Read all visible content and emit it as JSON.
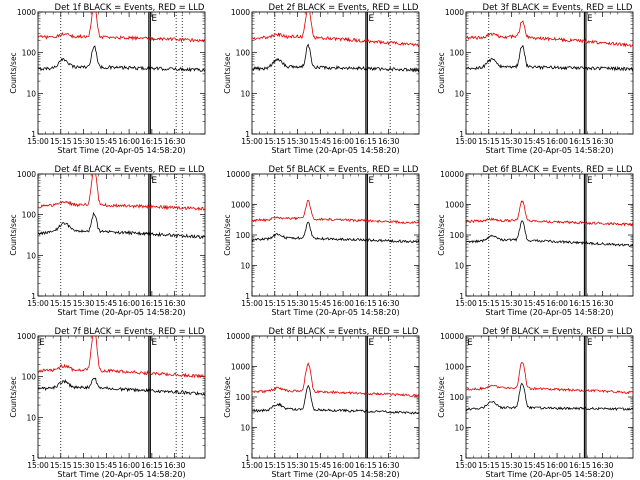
{
  "figure": {
    "colors": {
      "events": "#000000",
      "lld": "#e00000",
      "axis": "#000000"
    }
  },
  "chart_data": [
    {
      "type": "line",
      "title": "Det 1f BLACK = Events, RED = LLD",
      "xlabel": "Start Time (20-Apr-05 14:58:20)",
      "ylabel": "Counts/sec",
      "y_scale": "log",
      "ylim": [
        1,
        1000
      ],
      "y_ticks": [
        "1",
        "10",
        "100",
        "1000"
      ],
      "xlim": [
        0,
        110
      ],
      "x_ticks": [
        "15:00",
        "15:15",
        "15:30",
        "15:45",
        "16:00",
        "16:15",
        "16:30"
      ],
      "x_tick_minutes": [
        0,
        15,
        30,
        45,
        60,
        75,
        90
      ],
      "dotted_lines_minutes": [
        15,
        91,
        95
      ],
      "solid_lines_minutes": [
        [
          73,
          74
        ]
      ],
      "marker_labels": [
        {
          "text": "E",
          "minute": 74,
          "position": "top"
        }
      ],
      "series": [
        {
          "color": "black",
          "baseline": 45,
          "start": 40,
          "bump": {
            "minute": 17,
            "amplitude": 25
          },
          "peak": {
            "minute": 37,
            "value": 150
          },
          "end": 38
        },
        {
          "color": "red",
          "baseline": 250,
          "start": 240,
          "bump": {
            "minute": 17,
            "amplitude": 40
          },
          "peak": {
            "minute": 37,
            "value": 1400
          },
          "end": 200
        }
      ]
    },
    {
      "type": "line",
      "title": "Det 2f BLACK = Events, RED = LLD",
      "xlabel": "Start Time (20-Apr-05 14:58:20)",
      "ylabel": "Counts/sec",
      "y_scale": "log",
      "ylim": [
        1,
        1000
      ],
      "y_ticks": [
        "1",
        "10",
        "100",
        "1000"
      ],
      "xlim": [
        0,
        110
      ],
      "x_ticks": [
        "15:00",
        "15:15",
        "15:30",
        "15:45",
        "16:00",
        "16:15",
        "16:30"
      ],
      "x_tick_minutes": [
        0,
        15,
        30,
        45,
        60,
        75,
        90
      ],
      "dotted_lines_minutes": [
        15,
        91
      ],
      "solid_lines_minutes": [
        [
          75,
          76
        ]
      ],
      "marker_labels": [
        {
          "text": "E",
          "minute": 76,
          "position": "top"
        }
      ],
      "series": [
        {
          "color": "black",
          "baseline": 45,
          "start": 40,
          "bump": {
            "minute": 17,
            "amplitude": 25
          },
          "peak": {
            "minute": 37,
            "value": 150
          },
          "end": 38
        },
        {
          "color": "red",
          "baseline": 250,
          "start": 230,
          "bump": {
            "minute": 17,
            "amplitude": 40
          },
          "peak": {
            "minute": 37,
            "value": 1300
          },
          "end": 150
        }
      ]
    },
    {
      "type": "line",
      "title": "Det 3f BLACK = Events, RED = LLD",
      "xlabel": "Start Time (20-Apr-05 14:58:20)",
      "ylabel": "Counts/sec",
      "y_scale": "log",
      "ylim": [
        1,
        1000
      ],
      "y_ticks": [
        "1",
        "10",
        "100",
        "1000"
      ],
      "xlim": [
        0,
        110
      ],
      "x_ticks": [
        "15:00",
        "15:15",
        "15:30",
        "15:45",
        "16:00",
        "16:15",
        "16:30"
      ],
      "x_tick_minutes": [
        0,
        15,
        30,
        45,
        60,
        75,
        90
      ],
      "dotted_lines_minutes": [
        15
      ],
      "solid_lines_minutes": [
        [
          78,
          79
        ]
      ],
      "marker_labels": [
        {
          "text": "E",
          "minute": 79,
          "position": "top"
        }
      ],
      "series": [
        {
          "color": "black",
          "baseline": 45,
          "start": 40,
          "bump": {
            "minute": 17,
            "amplitude": 25
          },
          "peak": {
            "minute": 37,
            "value": 150
          },
          "end": 40
        },
        {
          "color": "red",
          "baseline": 250,
          "start": 230,
          "bump": {
            "minute": 17,
            "amplitude": 40
          },
          "peak": {
            "minute": 37,
            "value": 600
          },
          "end": 150
        }
      ]
    },
    {
      "type": "line",
      "title": "Det 4f BLACK = Events, RED = LLD",
      "xlabel": "Start Time (20-Apr-05 14:58:20)",
      "ylabel": "Counts/sec",
      "y_scale": "log",
      "ylim": [
        1,
        1000
      ],
      "y_ticks": [
        "1",
        "10",
        "100",
        "1000"
      ],
      "xlim": [
        0,
        110
      ],
      "x_ticks": [
        "15:00",
        "15:15",
        "15:30",
        "15:45",
        "16:00",
        "16:15",
        "16:30"
      ],
      "x_tick_minutes": [
        0,
        15,
        30,
        45,
        60,
        75,
        90
      ],
      "dotted_lines_minutes": [
        15,
        91,
        95
      ],
      "solid_lines_minutes": [
        [
          73,
          74
        ]
      ],
      "marker_labels": [
        {
          "text": "E",
          "minute": 74,
          "position": "top"
        }
      ],
      "series": [
        {
          "color": "black",
          "baseline": 40,
          "start": 35,
          "bump": {
            "minute": 17,
            "amplitude": 25
          },
          "peak": {
            "minute": 37,
            "value": 110
          },
          "end": 28
        },
        {
          "color": "red",
          "baseline": 180,
          "start": 160,
          "bump": {
            "minute": 17,
            "amplitude": 40
          },
          "peak": {
            "minute": 37,
            "value": 1300
          },
          "end": 140
        }
      ]
    },
    {
      "type": "line",
      "title": "Det 5f BLACK = Events, RED = LLD",
      "xlabel": "Start Time (20-Apr-05 14:58:20)",
      "ylabel": "Counts/sec",
      "y_scale": "log",
      "ylim": [
        1,
        10000
      ],
      "y_ticks": [
        "1",
        "10",
        "100",
        "1000",
        "10000"
      ],
      "xlim": [
        0,
        110
      ],
      "x_ticks": [
        "15:00",
        "15:15",
        "15:30",
        "15:45",
        "16:00",
        "16:15",
        "16:30"
      ],
      "x_tick_minutes": [
        0,
        15,
        30,
        45,
        60,
        75,
        90
      ],
      "dotted_lines_minutes": [
        15,
        91
      ],
      "solid_lines_minutes": [
        [
          75,
          76
        ]
      ],
      "marker_labels": [
        {
          "text": "E",
          "minute": 76,
          "position": "top"
        }
      ],
      "series": [
        {
          "color": "black",
          "baseline": 80,
          "start": 70,
          "bump": {
            "minute": 17,
            "amplitude": 30
          },
          "peak": {
            "minute": 37,
            "value": 250
          },
          "end": 60
        },
        {
          "color": "red",
          "baseline": 350,
          "start": 300,
          "bump": {
            "minute": 17,
            "amplitude": 50
          },
          "peak": {
            "minute": 37,
            "value": 1300
          },
          "end": 250
        }
      ]
    },
    {
      "type": "line",
      "title": "Det 6f BLACK = Events, RED = LLD",
      "xlabel": "Start Time (20-Apr-05 14:58:20)",
      "ylabel": "Counts/sec",
      "y_scale": "log",
      "ylim": [
        1,
        10000
      ],
      "y_ticks": [
        "1",
        "10",
        "100",
        "1000",
        "10000"
      ],
      "xlim": [
        0,
        110
      ],
      "x_ticks": [
        "15:00",
        "15:15",
        "15:30",
        "15:45",
        "16:00",
        "16:15",
        "16:30"
      ],
      "x_tick_minutes": [
        0,
        15,
        30,
        45,
        60,
        75,
        90
      ],
      "dotted_lines_minutes": [
        15
      ],
      "solid_lines_minutes": [
        [
          78,
          79
        ]
      ],
      "marker_labels": [
        {
          "text": "E",
          "minute": 79,
          "position": "top"
        }
      ],
      "series": [
        {
          "color": "black",
          "baseline": 70,
          "start": 60,
          "bump": {
            "minute": 17,
            "amplitude": 25
          },
          "peak": {
            "minute": 37,
            "value": 280
          },
          "end": 45
        },
        {
          "color": "red",
          "baseline": 300,
          "start": 280,
          "bump": {
            "minute": 17,
            "amplitude": 40
          },
          "peak": {
            "minute": 37,
            "value": 1300
          },
          "end": 220
        }
      ]
    },
    {
      "type": "line",
      "title": "Det 7f BLACK = Events, RED = LLD",
      "xlabel": "Start Time (20-Apr-05 14:58:20)",
      "ylabel": "Counts/sec",
      "y_scale": "log",
      "ylim": [
        1,
        1000
      ],
      "y_ticks": [
        "1",
        "10",
        "100",
        "1000"
      ],
      "xlim": [
        0,
        110
      ],
      "x_ticks": [
        "15:00",
        "15:15",
        "15:30",
        "15:45",
        "16:00",
        "16:15",
        "16:30"
      ],
      "x_tick_minutes": [
        0,
        15,
        30,
        45,
        60,
        75,
        90
      ],
      "dotted_lines_minutes": [
        15,
        91,
        95
      ],
      "solid_lines_minutes": [
        [
          73,
          74
        ]
      ],
      "marker_labels": [
        {
          "text": "E",
          "minute": 0,
          "position": "top"
        },
        {
          "text": "E",
          "minute": 74,
          "position": "top"
        }
      ],
      "series": [
        {
          "color": "black",
          "baseline": 55,
          "start": 50,
          "bump": {
            "minute": 17,
            "amplitude": 25
          },
          "peak": {
            "minute": 37,
            "value": 100
          },
          "end": 38
        },
        {
          "color": "red",
          "baseline": 150,
          "start": 140,
          "bump": {
            "minute": 17,
            "amplitude": 40
          },
          "peak": {
            "minute": 37,
            "value": 1300
          },
          "end": 100
        }
      ]
    },
    {
      "type": "line",
      "title": "Det 8f BLACK = Events, RED = LLD",
      "xlabel": "Start Time (20-Apr-05 14:58:20)",
      "ylabel": "Counts/sec",
      "y_scale": "log",
      "ylim": [
        1,
        10000
      ],
      "y_ticks": [
        "1",
        "10",
        "100",
        "1000",
        "10000"
      ],
      "xlim": [
        0,
        110
      ],
      "x_ticks": [
        "15:00",
        "15:15",
        "15:30",
        "15:45",
        "16:00",
        "16:15",
        "16:30"
      ],
      "x_tick_minutes": [
        0,
        15,
        30,
        45,
        60,
        75,
        90
      ],
      "dotted_lines_minutes": [
        15,
        91
      ],
      "solid_lines_minutes": [
        [
          75,
          76
        ]
      ],
      "marker_labels": [
        {
          "text": "E",
          "minute": 76,
          "position": "top"
        }
      ],
      "series": [
        {
          "color": "black",
          "baseline": 40,
          "start": 35,
          "bump": {
            "minute": 17,
            "amplitude": 20
          },
          "peak": {
            "minute": 37,
            "value": 220
          },
          "end": 30
        },
        {
          "color": "red",
          "baseline": 160,
          "start": 150,
          "bump": {
            "minute": 17,
            "amplitude": 40
          },
          "peak": {
            "minute": 37,
            "value": 1200
          },
          "end": 110
        }
      ]
    },
    {
      "type": "line",
      "title": "Det 9f BLACK = Events, RED = LLD",
      "xlabel": "Start Time (20-Apr-05 14:58:20)",
      "ylabel": "Counts/sec",
      "y_scale": "log",
      "ylim": [
        1,
        10000
      ],
      "y_ticks": [
        "1",
        "10",
        "100",
        "1000",
        "10000"
      ],
      "xlim": [
        0,
        110
      ],
      "x_ticks": [
        "15:00",
        "15:15",
        "15:30",
        "15:45",
        "16:00",
        "16:15",
        "16:30"
      ],
      "x_tick_minutes": [
        0,
        15,
        30,
        45,
        60,
        75,
        90
      ],
      "dotted_lines_minutes": [
        15
      ],
      "solid_lines_minutes": [
        [
          78,
          79
        ]
      ],
      "marker_labels": [
        {
          "text": "E",
          "minute": 0,
          "position": "top"
        },
        {
          "text": "E",
          "minute": 79,
          "position": "top"
        }
      ],
      "series": [
        {
          "color": "black",
          "baseline": 45,
          "start": 40,
          "bump": {
            "minute": 17,
            "amplitude": 25
          },
          "peak": {
            "minute": 37,
            "value": 280
          },
          "end": 40
        },
        {
          "color": "red",
          "baseline": 200,
          "start": 180,
          "bump": {
            "minute": 17,
            "amplitude": 40
          },
          "peak": {
            "minute": 37,
            "value": 1400
          },
          "end": 140
        }
      ]
    }
  ]
}
